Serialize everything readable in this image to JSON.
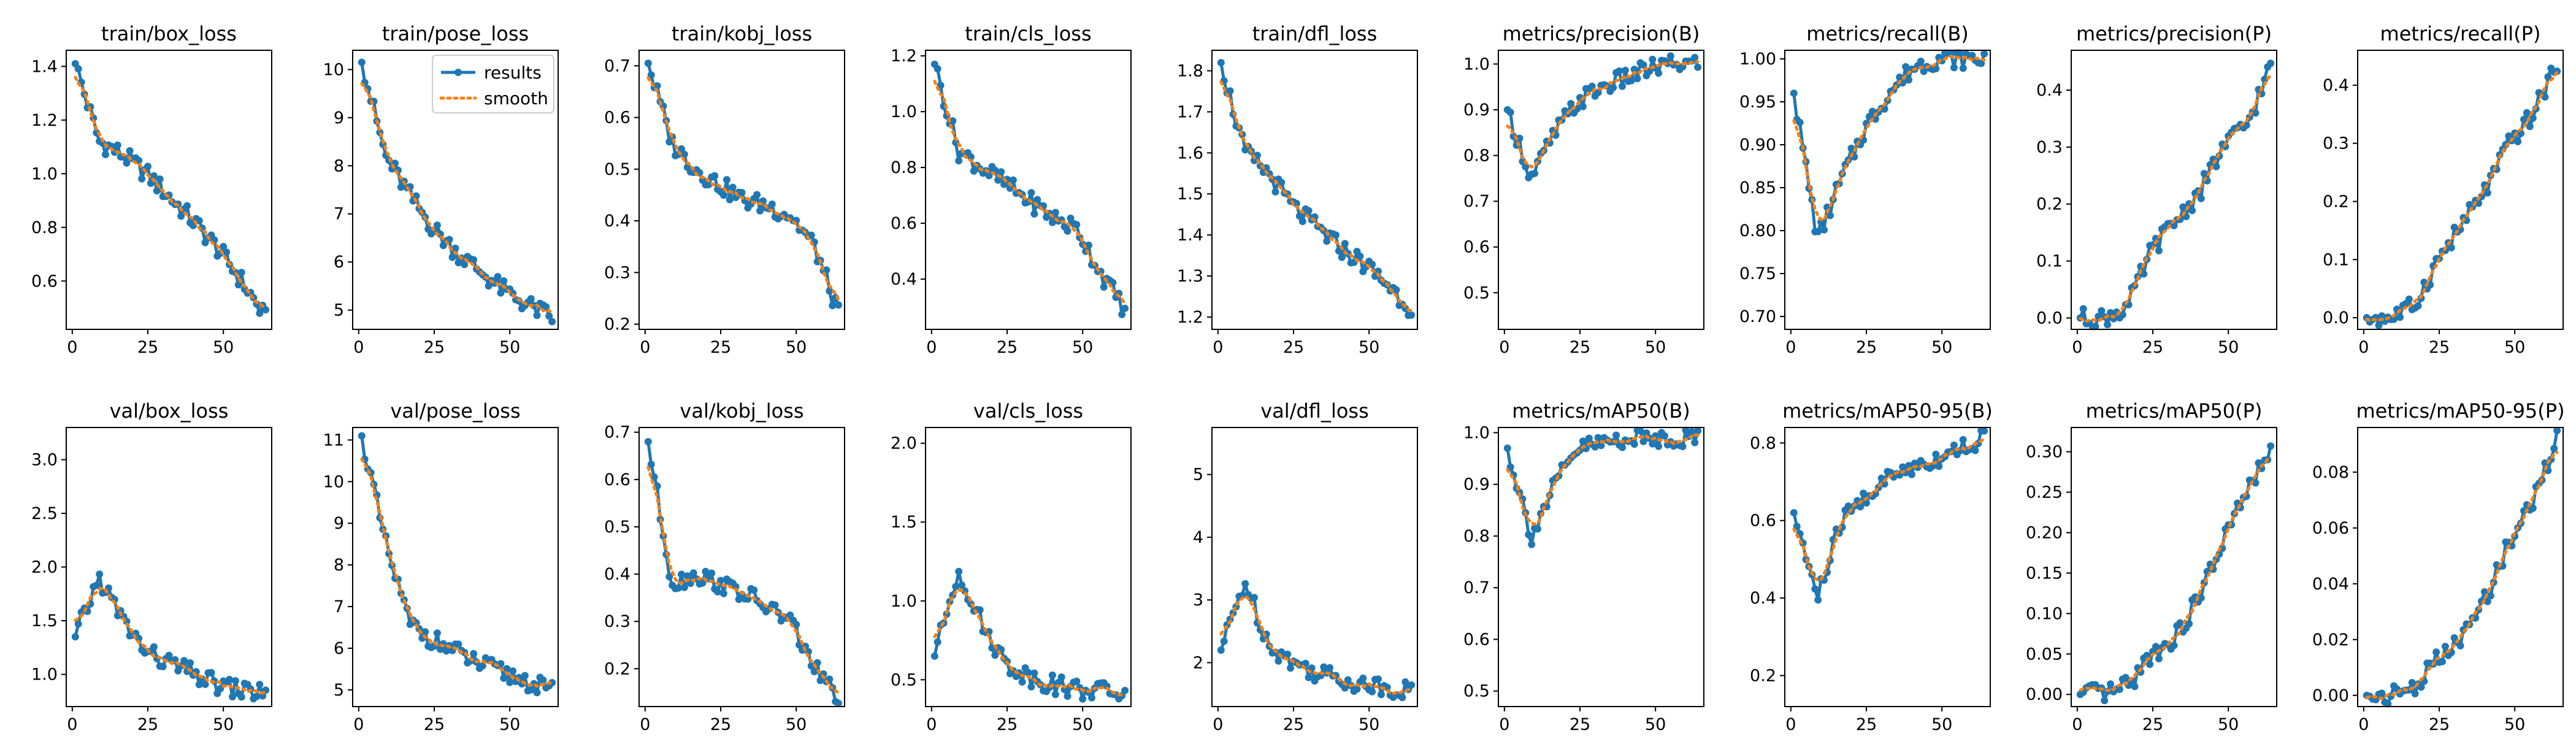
{
  "figure": {
    "legend": {
      "series_a": "results",
      "series_b": "smooth",
      "placement": "upper right of train/pose_loss panel"
    },
    "colors": {
      "results": "#1f77b4",
      "smooth": "#ff7f0e",
      "axes": "#000000"
    }
  },
  "chart_data": [
    {
      "type": "line",
      "title": "train/box_loss",
      "ylim": [
        0.42,
        1.46
      ],
      "yticks": [
        {
          "v": 0.6,
          "label": "0.6"
        },
        {
          "v": 0.8,
          "label": "0.8"
        },
        {
          "v": 1.0,
          "label": "1.0"
        },
        {
          "v": 1.2,
          "label": "1.2"
        },
        {
          "v": 1.4,
          "label": "1.4"
        }
      ],
      "trend": [
        1.41,
        1.12,
        1.07,
        1.0,
        0.91,
        0.82,
        0.72,
        0.6,
        0.46
      ]
    },
    {
      "type": "line",
      "title": "train/pose_loss",
      "ylim": [
        4.6,
        10.4
      ],
      "yticks": [
        {
          "v": 5,
          "label": "5"
        },
        {
          "v": 6,
          "label": "6"
        },
        {
          "v": 7,
          "label": "7"
        },
        {
          "v": 8,
          "label": "8"
        },
        {
          "v": 9,
          "label": "9"
        },
        {
          "v": 10,
          "label": "10"
        }
      ],
      "trend": [
        10.15,
        8.2,
        7.4,
        6.7,
        6.2,
        5.8,
        5.4,
        5.1,
        4.85
      ],
      "legend": true
    },
    {
      "type": "line",
      "title": "train/kobj_loss",
      "ylim": [
        0.19,
        0.73
      ],
      "yticks": [
        {
          "v": 0.2,
          "label": "0.2"
        },
        {
          "v": 0.3,
          "label": "0.3"
        },
        {
          "v": 0.4,
          "label": "0.4"
        },
        {
          "v": 0.5,
          "label": "0.5"
        },
        {
          "v": 0.6,
          "label": "0.6"
        },
        {
          "v": 0.7,
          "label": "0.7"
        }
      ],
      "trend": [
        0.705,
        0.55,
        0.5,
        0.47,
        0.44,
        0.43,
        0.41,
        0.35,
        0.22
      ]
    },
    {
      "type": "line",
      "title": "train/cls_loss",
      "ylim": [
        0.22,
        1.22
      ],
      "yticks": [
        {
          "v": 0.4,
          "label": "0.4"
        },
        {
          "v": 0.6,
          "label": "0.6"
        },
        {
          "v": 0.8,
          "label": "0.8"
        },
        {
          "v": 1.0,
          "label": "1.0"
        },
        {
          "v": 1.2,
          "label": "1.2"
        }
      ],
      "trend": [
        1.17,
        0.86,
        0.8,
        0.74,
        0.68,
        0.62,
        0.58,
        0.42,
        0.29
      ]
    },
    {
      "type": "line",
      "title": "train/dfl_loss",
      "ylim": [
        1.17,
        1.85
      ],
      "yticks": [
        {
          "v": 1.2,
          "label": "1.2"
        },
        {
          "v": 1.3,
          "label": "1.3"
        },
        {
          "v": 1.4,
          "label": "1.4"
        },
        {
          "v": 1.5,
          "label": "1.5"
        },
        {
          "v": 1.6,
          "label": "1.6"
        },
        {
          "v": 1.7,
          "label": "1.7"
        },
        {
          "v": 1.8,
          "label": "1.8"
        }
      ],
      "trend": [
        1.82,
        1.6,
        1.55,
        1.47,
        1.42,
        1.37,
        1.33,
        1.28,
        1.22
      ]
    },
    {
      "type": "line",
      "title": "metrics/precision(B)",
      "ylim": [
        0.42,
        1.03
      ],
      "yticks": [
        {
          "v": 0.5,
          "label": "0.5"
        },
        {
          "v": 0.6,
          "label": "0.6"
        },
        {
          "v": 0.7,
          "label": "0.7"
        },
        {
          "v": 0.8,
          "label": "0.8"
        },
        {
          "v": 0.9,
          "label": "0.9"
        },
        {
          "v": 1.0,
          "label": "1.0"
        }
      ],
      "trend": [
        0.9,
        0.75,
        0.85,
        0.92,
        0.95,
        0.97,
        0.99,
        1.0,
        1.0
      ]
    },
    {
      "type": "line",
      "title": "metrics/recall(B)",
      "ylim": [
        0.685,
        1.01
      ],
      "yticks": [
        {
          "v": 0.7,
          "label": "0.70"
        },
        {
          "v": 0.75,
          "label": "0.75"
        },
        {
          "v": 0.8,
          "label": "0.80"
        },
        {
          "v": 0.85,
          "label": "0.85"
        },
        {
          "v": 0.9,
          "label": "0.90"
        },
        {
          "v": 0.95,
          "label": "0.95"
        },
        {
          "v": 1.0,
          "label": "1.00"
        }
      ],
      "trend": [
        0.96,
        0.79,
        0.86,
        0.92,
        0.96,
        0.99,
        1.0,
        1.0,
        1.0
      ]
    },
    {
      "type": "line",
      "title": "metrics/precision(P)",
      "ylim": [
        -0.02,
        0.47
      ],
      "yticks": [
        {
          "v": 0.0,
          "label": "0.0"
        },
        {
          "v": 0.1,
          "label": "0.1"
        },
        {
          "v": 0.2,
          "label": "0.2"
        },
        {
          "v": 0.3,
          "label": "0.3"
        },
        {
          "v": 0.4,
          "label": "0.4"
        }
      ],
      "trend": [
        0.0,
        0.0,
        0.02,
        0.12,
        0.17,
        0.22,
        0.3,
        0.34,
        0.44
      ]
    },
    {
      "type": "line",
      "title": "metrics/recall(P)",
      "ylim": [
        -0.02,
        0.46
      ],
      "yticks": [
        {
          "v": 0.0,
          "label": "0.0"
        },
        {
          "v": 0.1,
          "label": "0.1"
        },
        {
          "v": 0.2,
          "label": "0.2"
        },
        {
          "v": 0.3,
          "label": "0.3"
        },
        {
          "v": 0.4,
          "label": "0.4"
        }
      ],
      "trend": [
        0.0,
        0.0,
        0.02,
        0.1,
        0.16,
        0.22,
        0.3,
        0.35,
        0.44
      ]
    },
    {
      "type": "line",
      "title": "val/box_loss",
      "ylim": [
        0.7,
        3.3
      ],
      "yticks": [
        {
          "v": 1.0,
          "label": "1.0"
        },
        {
          "v": 1.5,
          "label": "1.5"
        },
        {
          "v": 2.0,
          "label": "2.0"
        },
        {
          "v": 2.5,
          "label": "2.5"
        },
        {
          "v": 3.0,
          "label": "3.0"
        }
      ],
      "trend": [
        1.35,
        1.9,
        1.5,
        1.2,
        1.1,
        1.0,
        0.9,
        0.85,
        0.83
      ]
    },
    {
      "type": "line",
      "title": "val/pose_loss",
      "ylim": [
        4.6,
        11.3
      ],
      "yticks": [
        {
          "v": 5,
          "label": "5"
        },
        {
          "v": 6,
          "label": "6"
        },
        {
          "v": 7,
          "label": "7"
        },
        {
          "v": 8,
          "label": "8"
        },
        {
          "v": 9,
          "label": "9"
        },
        {
          "v": 10,
          "label": "10"
        },
        {
          "v": 11,
          "label": "11"
        }
      ],
      "trend": [
        11.1,
        8.5,
        6.6,
        6.2,
        5.9,
        5.6,
        5.4,
        5.2,
        4.95
      ]
    },
    {
      "type": "line",
      "title": "val/kobj_loss",
      "ylim": [
        0.12,
        0.71
      ],
      "yticks": [
        {
          "v": 0.2,
          "label": "0.2"
        },
        {
          "v": 0.3,
          "label": "0.3"
        },
        {
          "v": 0.4,
          "label": "0.4"
        },
        {
          "v": 0.5,
          "label": "0.5"
        },
        {
          "v": 0.6,
          "label": "0.6"
        },
        {
          "v": 0.7,
          "label": "0.7"
        }
      ],
      "trend": [
        0.68,
        0.38,
        0.4,
        0.38,
        0.36,
        0.33,
        0.3,
        0.2,
        0.14
      ]
    },
    {
      "type": "line",
      "title": "val/cls_loss",
      "ylim": [
        0.33,
        2.1
      ],
      "yticks": [
        {
          "v": 0.5,
          "label": "0.5"
        },
        {
          "v": 1.0,
          "label": "1.0"
        },
        {
          "v": 1.5,
          "label": "1.5"
        },
        {
          "v": 2.0,
          "label": "2.0"
        }
      ],
      "trend": [
        0.65,
        1.2,
        0.85,
        0.6,
        0.52,
        0.47,
        0.44,
        0.43,
        0.41
      ]
    },
    {
      "type": "line",
      "title": "val/dfl_loss",
      "ylim": [
        1.3,
        5.75
      ],
      "yticks": [
        {
          "v": 2,
          "label": "2"
        },
        {
          "v": 3,
          "label": "3"
        },
        {
          "v": 4,
          "label": "4"
        },
        {
          "v": 5,
          "label": "5"
        }
      ],
      "trend": [
        2.2,
        3.3,
        2.3,
        2.0,
        1.85,
        1.75,
        1.65,
        1.6,
        1.55
      ]
    },
    {
      "type": "line",
      "title": "metrics/mAP50(B)",
      "ylim": [
        0.47,
        1.01
      ],
      "yticks": [
        {
          "v": 0.5,
          "label": "0.5"
        },
        {
          "v": 0.6,
          "label": "0.6"
        },
        {
          "v": 0.7,
          "label": "0.7"
        },
        {
          "v": 0.8,
          "label": "0.8"
        },
        {
          "v": 0.9,
          "label": "0.9"
        },
        {
          "v": 1.0,
          "label": "1.0"
        }
      ],
      "trend": [
        0.97,
        0.8,
        0.9,
        0.97,
        0.98,
        0.99,
        0.99,
        0.99,
        0.99
      ]
    },
    {
      "type": "line",
      "title": "metrics/mAP50-95(B)",
      "ylim": [
        0.12,
        0.84
      ],
      "yticks": [
        {
          "v": 0.2,
          "label": "0.2"
        },
        {
          "v": 0.4,
          "label": "0.4"
        },
        {
          "v": 0.6,
          "label": "0.6"
        },
        {
          "v": 0.8,
          "label": "0.8"
        }
      ],
      "trend": [
        0.62,
        0.4,
        0.6,
        0.66,
        0.71,
        0.74,
        0.76,
        0.79,
        0.81
      ]
    },
    {
      "type": "line",
      "title": "metrics/mAP50(P)",
      "ylim": [
        -0.015,
        0.33
      ],
      "yticks": [
        {
          "v": 0.0,
          "label": "0.00"
        },
        {
          "v": 0.05,
          "label": "0.05"
        },
        {
          "v": 0.1,
          "label": "0.10"
        },
        {
          "v": 0.15,
          "label": "0.15"
        },
        {
          "v": 0.2,
          "label": "0.20"
        },
        {
          "v": 0.25,
          "label": "0.25"
        },
        {
          "v": 0.3,
          "label": "0.30"
        }
      ],
      "trend": [
        0.0,
        0.0,
        0.01,
        0.05,
        0.07,
        0.12,
        0.19,
        0.25,
        0.3
      ]
    },
    {
      "type": "line",
      "title": "metrics/mAP50-95(P)",
      "ylim": [
        -0.004,
        0.096
      ],
      "yticks": [
        {
          "v": 0.0,
          "label": "0.00"
        },
        {
          "v": 0.02,
          "label": "0.02"
        },
        {
          "v": 0.04,
          "label": "0.04"
        },
        {
          "v": 0.06,
          "label": "0.06"
        },
        {
          "v": 0.08,
          "label": "0.08"
        }
      ],
      "trend": [
        0.0,
        0.0,
        0.003,
        0.013,
        0.02,
        0.035,
        0.055,
        0.07,
        0.092
      ]
    }
  ],
  "shared_axes": {
    "xlim": [
      -2,
      66
    ],
    "xticks": [
      {
        "v": 0,
        "label": "0"
      },
      {
        "v": 25,
        "label": "25"
      },
      {
        "v": 50,
        "label": "50"
      }
    ],
    "epochs": 64
  }
}
